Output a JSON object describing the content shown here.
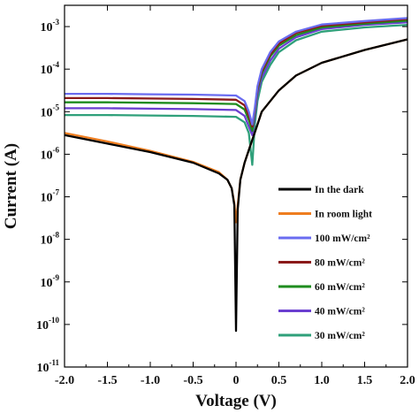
{
  "chart_data": {
    "type": "line",
    "xlabel": "Voltage (V)",
    "ylabel": "Current (A)",
    "xlim": [
      -2.0,
      2.0
    ],
    "ylim_log10": [
      -11,
      -2.5
    ],
    "y_scale": "log",
    "grid": false,
    "legend_position": "bottom-right",
    "x_ticks": [
      -2.0,
      -1.5,
      -1.0,
      -0.5,
      0.0,
      0.5,
      1.0,
      1.5,
      2.0
    ],
    "x_tick_labels": [
      "-2.0",
      "-1.5",
      "-1.0",
      "-0.5",
      "0",
      "0.5",
      "1.0",
      "1.5",
      "2.0"
    ],
    "y_ticks": [
      {
        "base": "10",
        "exp": "-11",
        "value": -11
      },
      {
        "base": "10",
        "exp": "-10",
        "value": -10
      },
      {
        "base": "10",
        "exp": "-9",
        "value": -9
      },
      {
        "base": "10",
        "exp": "-8",
        "value": -8
      },
      {
        "base": "10",
        "exp": "-7",
        "value": -7
      },
      {
        "base": "10",
        "exp": "-6",
        "value": -6
      },
      {
        "base": "10",
        "exp": "-5",
        "value": -5
      },
      {
        "base": "10",
        "exp": "-4",
        "value": -4
      },
      {
        "base": "10",
        "exp": "-3",
        "value": -3
      }
    ],
    "series": [
      {
        "name": "In the dark",
        "color": "#000000",
        "x": [
          -2.0,
          -1.5,
          -1.0,
          -0.5,
          -0.2,
          -0.1,
          -0.05,
          -0.02,
          0.0,
          0.02,
          0.05,
          0.1,
          0.15,
          0.2,
          0.25,
          0.3,
          0.5,
          0.7,
          1.0,
          1.5,
          2.0
        ],
        "y_log10": [
          -5.55,
          -5.75,
          -5.95,
          -6.2,
          -6.45,
          -6.6,
          -6.8,
          -7.2,
          -10.15,
          -7.3,
          -6.6,
          -6.2,
          -5.9,
          -5.6,
          -5.3,
          -5.0,
          -4.5,
          -4.15,
          -3.85,
          -3.55,
          -3.3
        ]
      },
      {
        "name": "In room light",
        "color": "#ee7d1f",
        "x": [
          -2.0,
          -1.5,
          -1.0,
          -0.5,
          -0.2,
          -0.1,
          -0.05,
          -0.02,
          0.0,
          0.02,
          0.05,
          0.1,
          0.15,
          0.2,
          0.25,
          0.3,
          0.5,
          0.7,
          1.0,
          1.5,
          2.0
        ],
        "y_log10": [
          -5.5,
          -5.7,
          -5.92,
          -6.18,
          -6.42,
          -6.6,
          -6.8,
          -7.15,
          -7.6,
          -7.2,
          -6.6,
          -6.2,
          -5.9,
          -5.6,
          -5.3,
          -5.0,
          -4.5,
          -4.15,
          -3.85,
          -3.55,
          -3.3
        ]
      },
      {
        "name": "100 mW/cm²",
        "color": "#6a6cf0",
        "x": [
          -2.0,
          -1.5,
          -1.0,
          -0.5,
          0.0,
          0.1,
          0.15,
          0.19,
          0.22,
          0.25,
          0.3,
          0.4,
          0.5,
          0.7,
          1.0,
          1.5,
          2.0
        ],
        "y_log10": [
          -4.58,
          -4.58,
          -4.59,
          -4.6,
          -4.62,
          -4.75,
          -5.0,
          -5.3,
          -4.9,
          -4.4,
          -4.0,
          -3.6,
          -3.35,
          -3.12,
          -2.95,
          -2.87,
          -2.8
        ]
      },
      {
        "name": "80 mW/cm²",
        "color": "#8b1a1a",
        "x": [
          -2.0,
          -1.5,
          -1.0,
          -0.5,
          0.0,
          0.1,
          0.15,
          0.19,
          0.22,
          0.25,
          0.3,
          0.4,
          0.5,
          0.7,
          1.0,
          1.5,
          2.0
        ],
        "y_log10": [
          -4.68,
          -4.68,
          -4.69,
          -4.7,
          -4.72,
          -4.85,
          -5.1,
          -5.35,
          -4.95,
          -4.45,
          -4.05,
          -3.65,
          -3.4,
          -3.15,
          -2.98,
          -2.9,
          -2.82
        ]
      },
      {
        "name": "60 mW/cm²",
        "color": "#1e8c1e",
        "x": [
          -2.0,
          -1.5,
          -1.0,
          -0.5,
          0.0,
          0.1,
          0.15,
          0.19,
          0.22,
          0.25,
          0.3,
          0.4,
          0.5,
          0.7,
          1.0,
          1.5,
          2.0
        ],
        "y_log10": [
          -4.78,
          -4.78,
          -4.79,
          -4.8,
          -4.82,
          -4.95,
          -5.2,
          -5.45,
          -5.0,
          -4.5,
          -4.1,
          -3.7,
          -3.45,
          -3.2,
          -3.02,
          -2.93,
          -2.86
        ]
      },
      {
        "name": "40 mW/cm²",
        "color": "#6a3fd0",
        "x": [
          -2.0,
          -1.5,
          -1.0,
          -0.5,
          0.0,
          0.1,
          0.15,
          0.19,
          0.22,
          0.25,
          0.3,
          0.4,
          0.5,
          0.7,
          1.0,
          1.5,
          2.0
        ],
        "y_log10": [
          -4.92,
          -4.92,
          -4.93,
          -4.94,
          -4.96,
          -5.1,
          -5.35,
          -5.55,
          -5.1,
          -4.6,
          -4.2,
          -3.8,
          -3.52,
          -3.25,
          -3.06,
          -2.96,
          -2.9
        ]
      },
      {
        "name": "30 mW/cm²",
        "color": "#2fa07a",
        "x": [
          -2.0,
          -1.5,
          -1.0,
          -0.5,
          0.0,
          0.1,
          0.15,
          0.19,
          0.22,
          0.25,
          0.3,
          0.4,
          0.5,
          0.7,
          1.0,
          1.5,
          2.0
        ],
        "y_log10": [
          -5.08,
          -5.08,
          -5.09,
          -5.1,
          -5.12,
          -5.25,
          -5.5,
          -6.25,
          -5.3,
          -4.75,
          -4.3,
          -3.9,
          -3.6,
          -3.32,
          -3.12,
          -3.02,
          -2.96
        ]
      }
    ]
  }
}
